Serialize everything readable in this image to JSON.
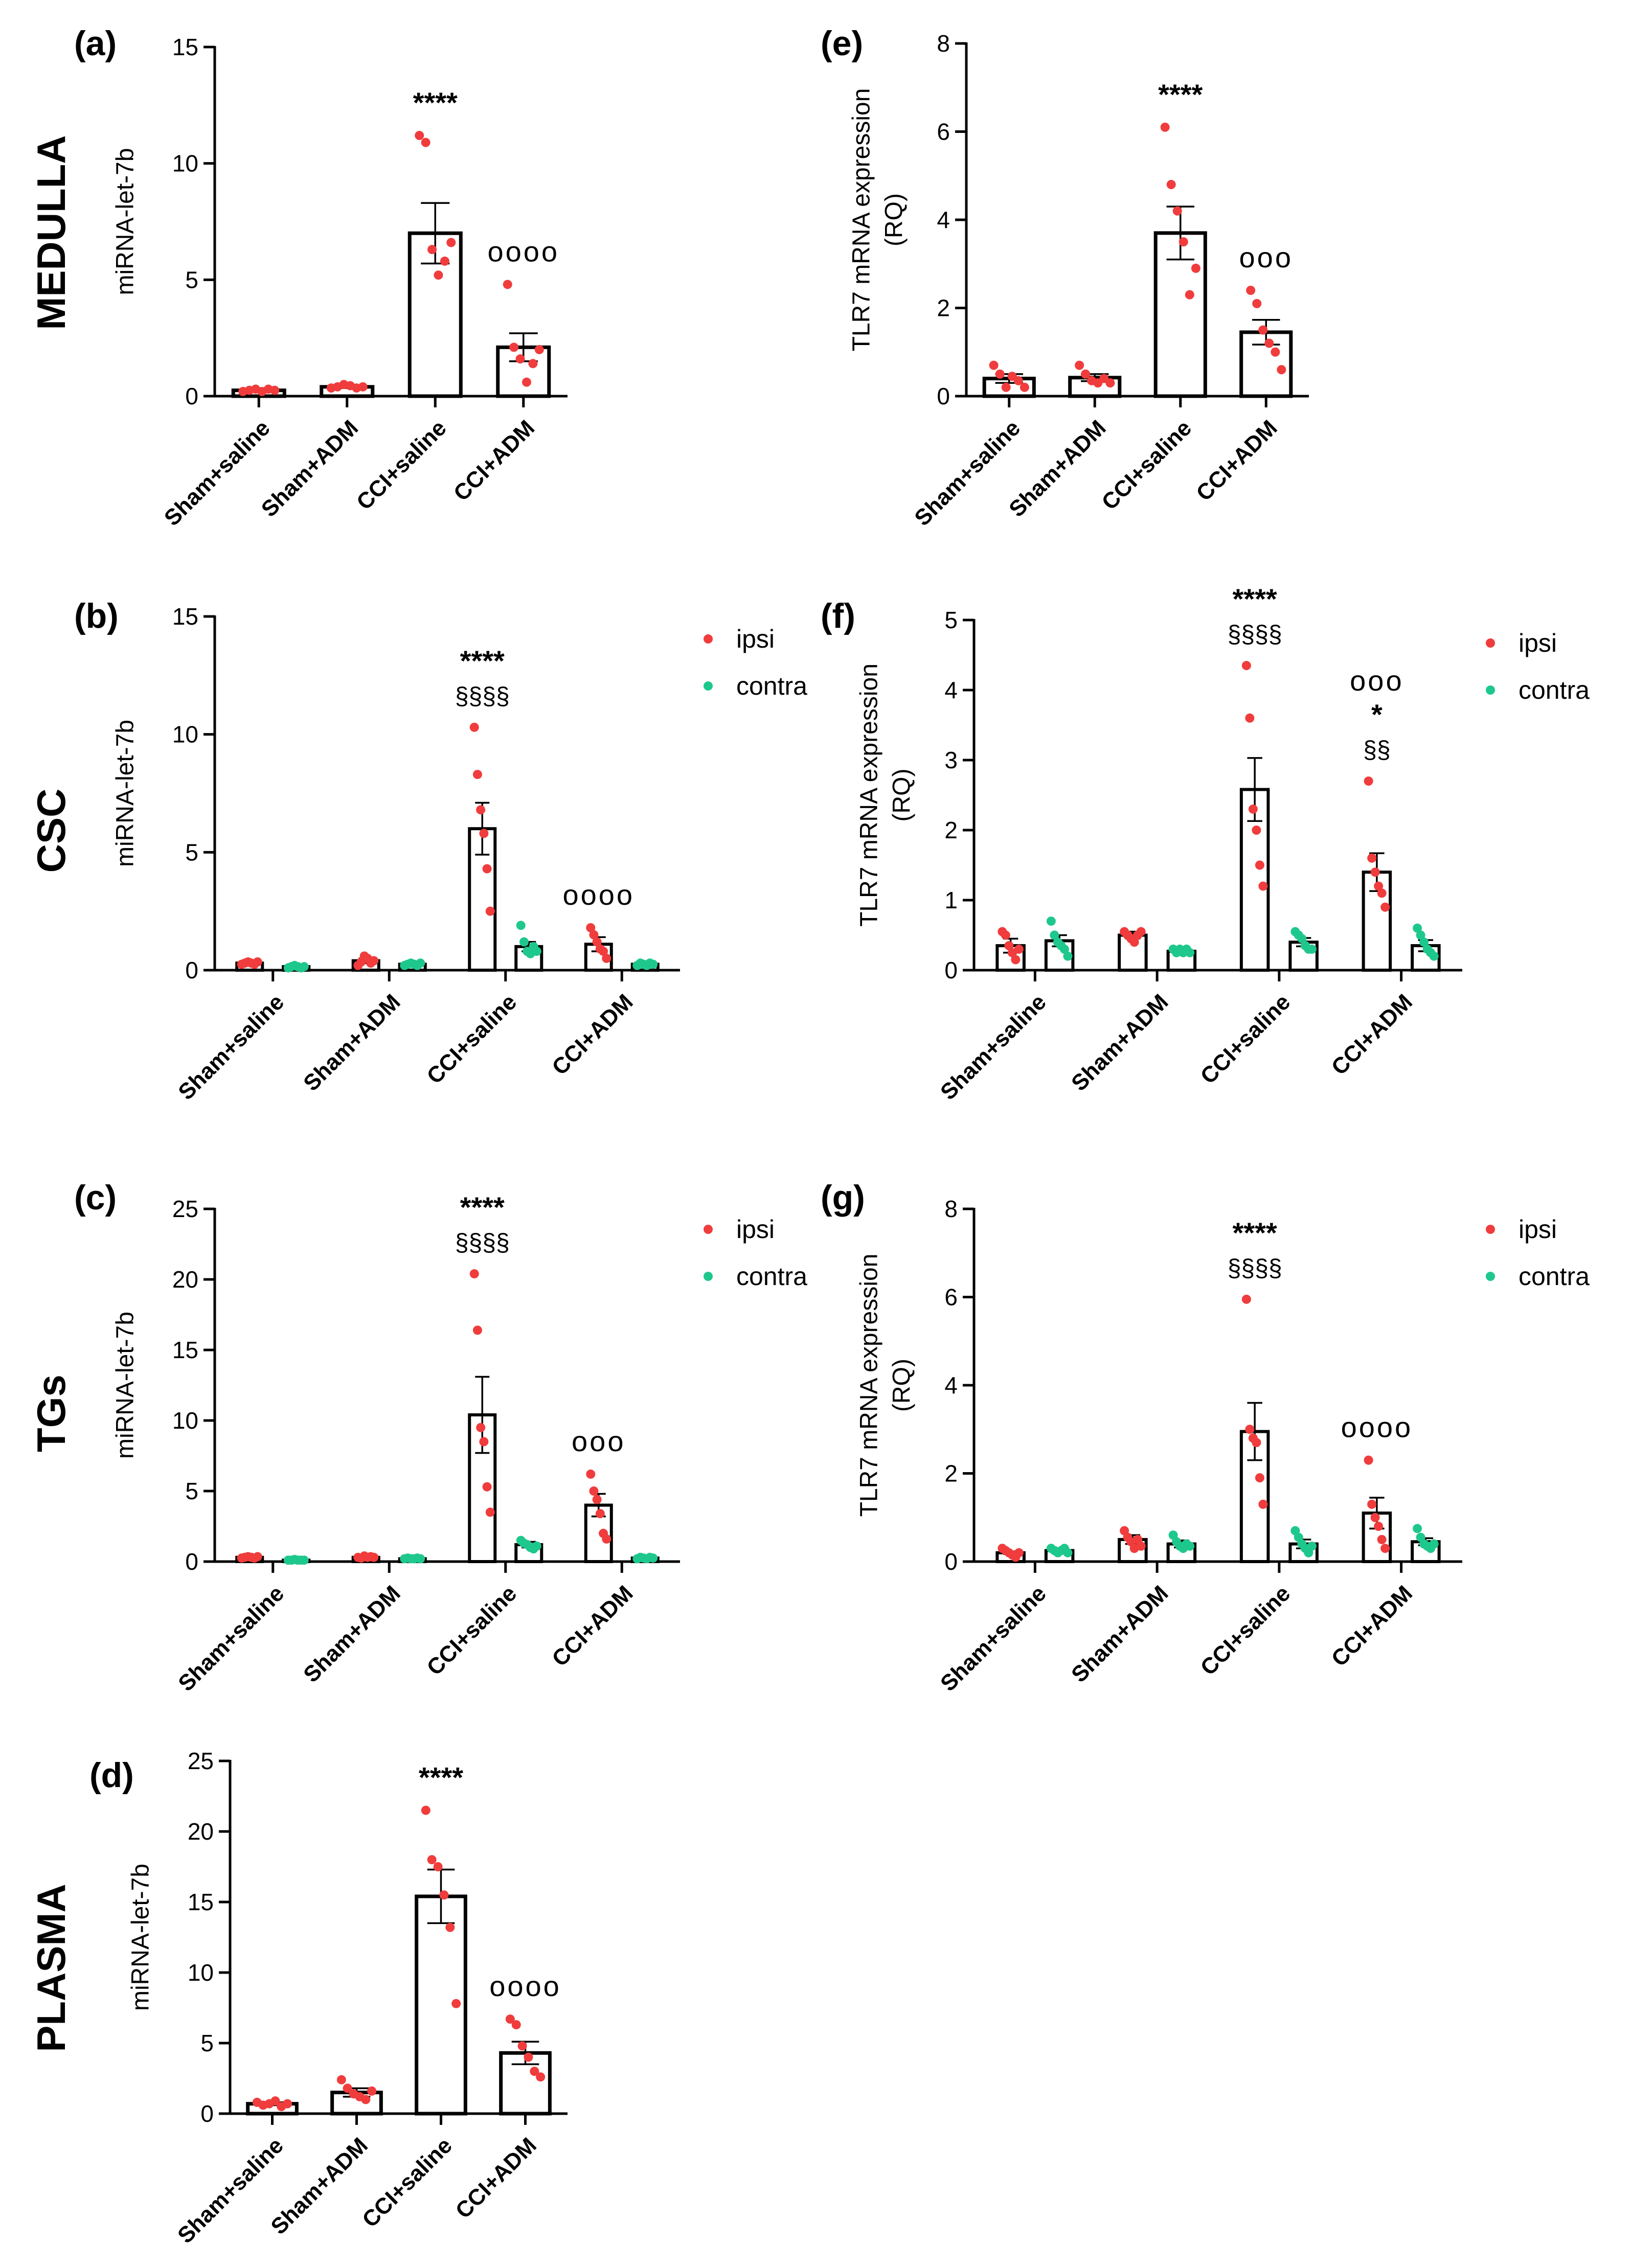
{
  "figure": {
    "row_labels": [
      {
        "id": "medulla",
        "text": "MEDULLA"
      },
      {
        "id": "csc",
        "text": "CSC"
      },
      {
        "id": "tgs",
        "text": "TGs"
      },
      {
        "id": "plasma",
        "text": "PLASMA"
      }
    ],
    "colors": {
      "ipsi": "#f03c3c",
      "contra": "#1ec88c",
      "axis": "#000000",
      "text": "#000000"
    }
  },
  "chart_data": [
    {
      "id": "a",
      "panel_label": "(a)",
      "type": "bar",
      "mode": "single",
      "ylabel": "miRNA-let-7b",
      "ylim": [
        0,
        15
      ],
      "yticks": [
        0,
        5,
        10,
        15
      ],
      "categories": [
        "Sham+saline",
        "Sham+ADM",
        "CCI+saline",
        "CCI+ADM"
      ],
      "series": [
        {
          "name": "ipsi",
          "color": "#f03c3c",
          "values": [
            0.25,
            0.4,
            7.0,
            2.1
          ],
          "sem": [
            0.05,
            0.05,
            1.3,
            0.6
          ],
          "points": [
            [
              0.2,
              0.25,
              0.3,
              0.2,
              0.3,
              0.25
            ],
            [
              0.35,
              0.4,
              0.5,
              0.45,
              0.35,
              0.4
            ],
            [
              11.2,
              10.9,
              6.3,
              5.2,
              5.8,
              6.6
            ],
            [
              4.8,
              2.1,
              1.6,
              0.6,
              1.4,
              2.0
            ]
          ]
        }
      ],
      "annotations": [
        {
          "group": 2,
          "lines": [
            "****"
          ]
        },
        {
          "group": 3,
          "lines": [
            "oooo"
          ]
        }
      ]
    },
    {
      "id": "e",
      "panel_label": "(e)",
      "type": "bar",
      "mode": "single",
      "ylabel": [
        "TLR7 mRNA expression",
        "(RQ)"
      ],
      "ylim": [
        0,
        8
      ],
      "yticks": [
        0,
        2,
        4,
        6,
        8
      ],
      "categories": [
        "Sham+saline",
        "Sham+ADM",
        "CCI+saline",
        "CCI+ADM"
      ],
      "series": [
        {
          "name": "ipsi",
          "color": "#f03c3c",
          "values": [
            0.4,
            0.42,
            3.7,
            1.45
          ],
          "sem": [
            0.1,
            0.08,
            0.6,
            0.28
          ],
          "points": [
            [
              0.7,
              0.5,
              0.2,
              0.45,
              0.35,
              0.2
            ],
            [
              0.7,
              0.5,
              0.35,
              0.3,
              0.4,
              0.3
            ],
            [
              6.1,
              4.8,
              4.2,
              3.5,
              2.3,
              2.9
            ],
            [
              2.4,
              2.1,
              1.5,
              1.2,
              1.0,
              0.6
            ]
          ]
        }
      ],
      "annotations": [
        {
          "group": 2,
          "lines": [
            "****"
          ]
        },
        {
          "group": 3,
          "lines": [
            "ooo"
          ]
        }
      ]
    },
    {
      "id": "b",
      "panel_label": "(b)",
      "type": "bar",
      "mode": "paired",
      "ylabel": "miRNA-let-7b",
      "ylim": [
        0,
        15
      ],
      "yticks": [
        0,
        5,
        10,
        15
      ],
      "categories": [
        "Sham+saline",
        "Sham+ADM",
        "CCI+saline",
        "CCI+ADM"
      ],
      "legend": [
        "ipsi",
        "contra"
      ],
      "series": [
        {
          "name": "ipsi",
          "color": "#f03c3c",
          "values": [
            0.3,
            0.4,
            6.0,
            1.1
          ],
          "sem": [
            0.05,
            0.1,
            1.1,
            0.3
          ],
          "points": [
            [
              0.25,
              0.3,
              0.35,
              0.3,
              0.25,
              0.35
            ],
            [
              0.2,
              0.35,
              0.6,
              0.5,
              0.3,
              0.4
            ],
            [
              10.3,
              8.3,
              6.8,
              5.8,
              4.3,
              2.5
            ],
            [
              1.8,
              1.5,
              1.2,
              0.9,
              0.8,
              0.5
            ]
          ]
        },
        {
          "name": "contra",
          "color": "#1ec88c",
          "values": [
            0.15,
            0.25,
            1.0,
            0.25
          ],
          "sem": [
            0.03,
            0.03,
            0.2,
            0.03
          ],
          "points": [
            [
              0.1,
              0.15,
              0.2,
              0.15,
              0.1,
              0.15
            ],
            [
              0.2,
              0.25,
              0.3,
              0.25,
              0.2,
              0.3
            ],
            [
              1.9,
              1.2,
              0.8,
              0.7,
              1.0,
              0.8
            ],
            [
              0.2,
              0.3,
              0.25,
              0.2,
              0.3,
              0.25
            ]
          ]
        }
      ],
      "annotations": [
        {
          "group": 2,
          "lines": [
            "****",
            "§§§§"
          ]
        },
        {
          "group": 3,
          "lines": [
            "oooo"
          ]
        }
      ]
    },
    {
      "id": "f",
      "panel_label": "(f)",
      "type": "bar",
      "mode": "paired",
      "ylabel": [
        "TLR7 mRNA expression",
        "(RQ)"
      ],
      "ylim": [
        0,
        5
      ],
      "yticks": [
        0,
        1,
        2,
        3,
        4,
        5
      ],
      "categories": [
        "Sham+saline",
        "Sham+ADM",
        "CCI+saline",
        "CCI+ADM"
      ],
      "legend": [
        "ipsi",
        "contra"
      ],
      "series": [
        {
          "name": "ipsi",
          "color": "#f03c3c",
          "values": [
            0.35,
            0.5,
            2.58,
            1.4
          ],
          "sem": [
            0.1,
            0.05,
            0.45,
            0.27
          ],
          "points": [
            [
              0.55,
              0.5,
              0.35,
              0.25,
              0.15,
              0.3
            ],
            [
              0.55,
              0.5,
              0.45,
              0.4,
              0.5,
              0.55
            ],
            [
              4.35,
              3.6,
              2.3,
              2.0,
              1.5,
              1.2
            ],
            [
              2.7,
              1.6,
              1.4,
              1.2,
              1.1,
              0.9
            ]
          ]
        },
        {
          "name": "contra",
          "color": "#1ec88c",
          "values": [
            0.42,
            0.27,
            0.4,
            0.35
          ],
          "sem": [
            0.08,
            0.03,
            0.06,
            0.08
          ],
          "points": [
            [
              0.7,
              0.5,
              0.4,
              0.35,
              0.3,
              0.2
            ],
            [
              0.3,
              0.25,
              0.3,
              0.25,
              0.3,
              0.25
            ],
            [
              0.55,
              0.5,
              0.45,
              0.35,
              0.3,
              0.3
            ],
            [
              0.6,
              0.5,
              0.4,
              0.3,
              0.25,
              0.2
            ]
          ]
        }
      ],
      "annotations": [
        {
          "group": 2,
          "lines": [
            "****",
            "§§§§"
          ]
        },
        {
          "group": 3,
          "lines": [
            "ooo",
            "*",
            "§§"
          ]
        }
      ]
    },
    {
      "id": "c",
      "panel_label": "(c)",
      "type": "bar",
      "mode": "paired",
      "ylabel": "miRNA-let-7b",
      "ylim": [
        0,
        25
      ],
      "yticks": [
        0,
        5,
        10,
        15,
        20,
        25
      ],
      "categories": [
        "Sham+saline",
        "Sham+ADM",
        "CCI+saline",
        "CCI+ADM"
      ],
      "legend": [
        "ipsi",
        "contra"
      ],
      "series": [
        {
          "name": "ipsi",
          "color": "#f03c3c",
          "values": [
            0.3,
            0.3,
            10.4,
            4.0
          ],
          "sem": [
            0.05,
            0.05,
            2.7,
            0.8
          ],
          "points": [
            [
              0.25,
              0.3,
              0.35,
              0.3,
              0.25,
              0.35
            ],
            [
              0.3,
              0.25,
              0.4,
              0.3,
              0.35,
              0.3
            ],
            [
              20.4,
              16.4,
              9.5,
              8.5,
              5.3,
              3.5
            ],
            [
              6.2,
              5.0,
              4.4,
              3.4,
              2.0,
              1.6
            ]
          ]
        },
        {
          "name": "contra",
          "color": "#1ec88c",
          "values": [
            0.1,
            0.2,
            1.2,
            0.25
          ],
          "sem": [
            0.02,
            0.03,
            0.2,
            0.03
          ],
          "points": [
            [
              0.1,
              0.1,
              0.15,
              0.1,
              0.1,
              0.1
            ],
            [
              0.2,
              0.25,
              0.2,
              0.2,
              0.25,
              0.2
            ],
            [
              1.5,
              1.3,
              1.2,
              1.0,
              0.9,
              1.1
            ],
            [
              0.2,
              0.3,
              0.25,
              0.2,
              0.3,
              0.25
            ]
          ]
        }
      ],
      "annotations": [
        {
          "group": 2,
          "lines": [
            "****",
            "§§§§"
          ]
        },
        {
          "group": 3,
          "lines": [
            "ooo"
          ]
        }
      ]
    },
    {
      "id": "g",
      "panel_label": "(g)",
      "type": "bar",
      "mode": "paired",
      "ylabel": [
        "TLR7 mRNA expression",
        "(RQ)"
      ],
      "ylim": [
        0,
        8
      ],
      "yticks": [
        0,
        2,
        4,
        6,
        8
      ],
      "categories": [
        "Sham+saline",
        "Sham+ADM",
        "CCI+saline",
        "CCI+ADM"
      ],
      "legend": [
        "ipsi",
        "contra"
      ],
      "series": [
        {
          "name": "ipsi",
          "color": "#f03c3c",
          "values": [
            0.2,
            0.5,
            2.95,
            1.1
          ],
          "sem": [
            0.03,
            0.1,
            0.65,
            0.35
          ],
          "points": [
            [
              0.3,
              0.25,
              0.2,
              0.15,
              0.1,
              0.2
            ],
            [
              0.7,
              0.55,
              0.45,
              0.3,
              0.5,
              0.35
            ],
            [
              5.95,
              3.0,
              2.8,
              2.7,
              1.9,
              1.3
            ],
            [
              2.3,
              1.3,
              1.0,
              0.8,
              0.5,
              0.3
            ]
          ]
        },
        {
          "name": "contra",
          "color": "#1ec88c",
          "values": [
            0.25,
            0.4,
            0.4,
            0.45
          ],
          "sem": [
            0.03,
            0.08,
            0.1,
            0.08
          ],
          "points": [
            [
              0.3,
              0.25,
              0.2,
              0.25,
              0.3,
              0.2
            ],
            [
              0.6,
              0.45,
              0.35,
              0.3,
              0.4,
              0.35
            ],
            [
              0.7,
              0.55,
              0.4,
              0.3,
              0.2,
              0.35
            ],
            [
              0.75,
              0.55,
              0.4,
              0.35,
              0.3,
              0.4
            ]
          ]
        }
      ],
      "annotations": [
        {
          "group": 2,
          "lines": [
            "****",
            "§§§§"
          ]
        },
        {
          "group": 3,
          "lines": [
            "oooo"
          ]
        }
      ]
    },
    {
      "id": "d",
      "panel_label": "(d)",
      "type": "bar",
      "mode": "single",
      "ylabel": "miRNA-let-7b",
      "ylim": [
        0,
        25
      ],
      "yticks": [
        0,
        5,
        10,
        15,
        20,
        25
      ],
      "categories": [
        "Sham+saline",
        "Sham+ADM",
        "CCI+saline",
        "CCI+ADM"
      ],
      "series": [
        {
          "name": "ipsi",
          "color": "#f03c3c",
          "values": [
            0.7,
            1.5,
            15.4,
            4.3
          ],
          "sem": [
            0.1,
            0.3,
            1.9,
            0.8
          ],
          "points": [
            [
              0.8,
              0.6,
              0.7,
              0.9,
              0.5,
              0.7
            ],
            [
              2.4,
              1.8,
              1.4,
              1.2,
              1.0,
              1.6
            ],
            [
              21.5,
              18.0,
              17.5,
              15.5,
              13.2,
              7.8
            ],
            [
              6.7,
              6.3,
              4.8,
              4.0,
              3.0,
              2.6
            ]
          ]
        }
      ],
      "annotations": [
        {
          "group": 2,
          "lines": [
            "****"
          ]
        },
        {
          "group": 3,
          "lines": [
            "oooo"
          ]
        }
      ]
    }
  ]
}
